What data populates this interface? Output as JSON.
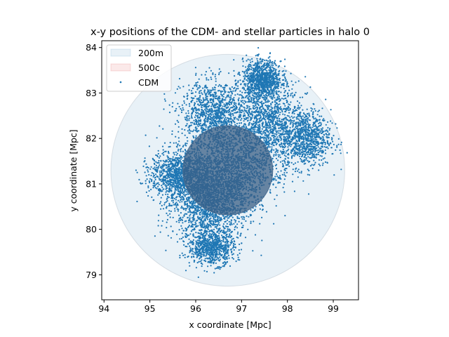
{
  "chart_data": {
    "type": "scatter",
    "title": "x-y positions of the CDM- and stellar particles in halo 0",
    "xlabel": "x coordinate [Mpc]",
    "ylabel": "y coordinate [Mpc]",
    "xlim": [
      93.95,
      95.5
    ],
    "xlim_note": "",
    "x_range": [
      93.95,
      99.55
    ],
    "y_range": [
      78.45,
      84.15
    ],
    "xticks": [
      94,
      95,
      96,
      97,
      98,
      99
    ],
    "yticks": [
      79,
      80,
      81,
      82,
      83,
      84
    ],
    "grid": false,
    "legend_position": "top-left",
    "legend": [
      {
        "label": "200m",
        "kind": "patch",
        "color": "#1f77b4"
      },
      {
        "label": "500c",
        "kind": "patch",
        "color": "#d62728"
      },
      {
        "label": "CDM",
        "kind": "marker",
        "color": "#1f77b4"
      }
    ],
    "circles": [
      {
        "name": "200m",
        "center": [
          96.7,
          81.3
        ],
        "radius": 2.55,
        "color": "#1f77b4",
        "alpha": 0.1
      },
      {
        "name": "500c",
        "center": [
          96.7,
          81.3
        ],
        "radius": 0.98,
        "color": "#d62728",
        "alpha": 0.1
      }
    ],
    "series": [
      {
        "name": "CDM",
        "color": "#1f77b4",
        "blobs": [
          {
            "center": [
              96.3,
              80.55
            ],
            "radius": [
              1.0,
              0.95
            ],
            "density": 1.0
          },
          {
            "center": [
              96.7,
              81.3
            ],
            "radius": [
              1.05,
              1.1
            ],
            "density": 1.0
          },
          {
            "center": [
              97.55,
              82.3
            ],
            "radius": [
              0.85,
              1.2
            ],
            "density": 0.9
          },
          {
            "center": [
              96.4,
              82.55
            ],
            "radius": [
              0.85,
              0.85
            ],
            "density": 0.75
          },
          {
            "center": [
              95.65,
              81.2
            ],
            "radius": [
              0.75,
              0.65
            ],
            "density": 0.8
          },
          {
            "center": [
              98.4,
              82.0
            ],
            "radius": [
              0.65,
              0.75
            ],
            "density": 0.6
          },
          {
            "center": [
              97.45,
              83.3
            ],
            "radius": [
              0.5,
              0.5
            ],
            "density": 0.6
          },
          {
            "center": [
              96.35,
              79.6
            ],
            "radius": [
              0.6,
              0.45
            ],
            "density": 0.5
          }
        ]
      }
    ]
  }
}
